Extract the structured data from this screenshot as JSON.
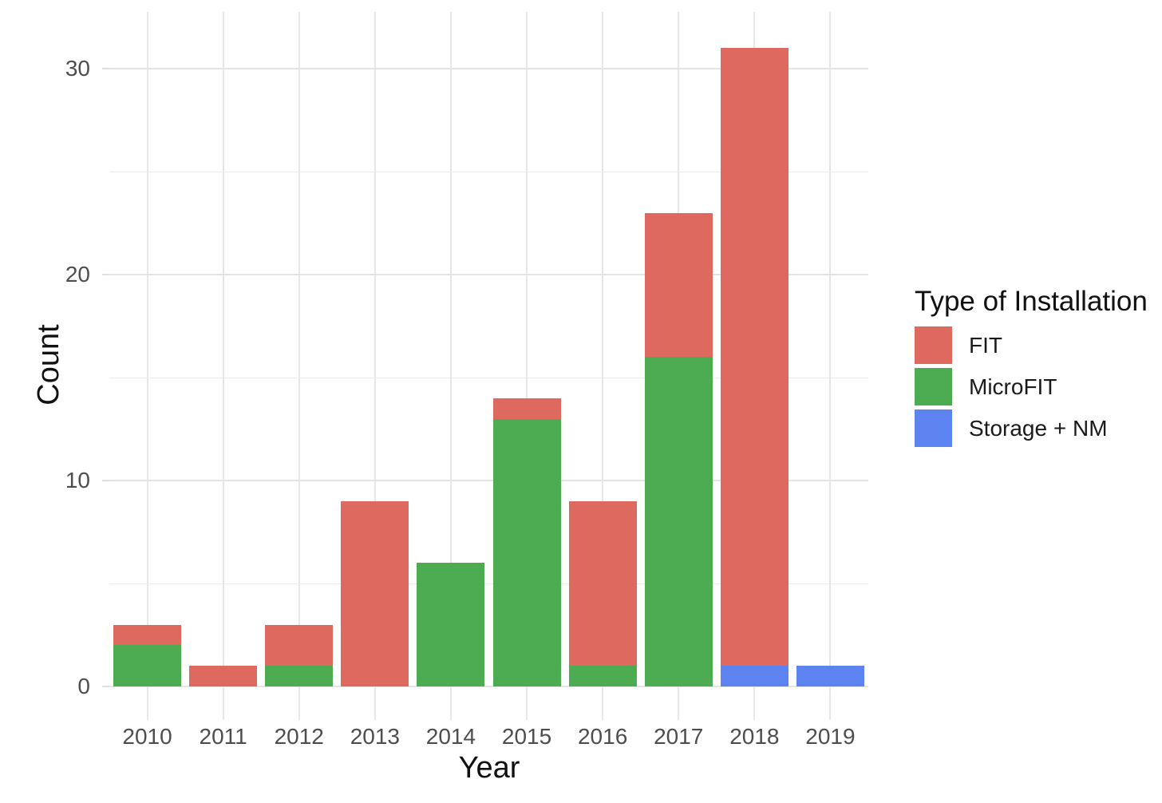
{
  "chart_data": {
    "type": "bar",
    "stacked": true,
    "xlabel": "Year",
    "ylabel": "Count",
    "legend_title": "Type of Installation",
    "legend_position": "right",
    "grid": true,
    "categories": [
      "2010",
      "2011",
      "2012",
      "2013",
      "2014",
      "2015",
      "2016",
      "2017",
      "2018",
      "2019"
    ],
    "series": [
      {
        "name": "FIT",
        "color": "#de695e",
        "values": [
          1,
          1,
          2,
          9,
          0,
          1,
          8,
          7,
          30,
          0
        ]
      },
      {
        "name": "MicroFIT",
        "color": "#4dac51",
        "values": [
          2,
          0,
          1,
          0,
          6,
          13,
          1,
          16,
          0,
          0
        ]
      },
      {
        "name": "Storage + NM",
        "color": "#5c83f0",
        "values": [
          0,
          0,
          0,
          0,
          0,
          0,
          0,
          0,
          1,
          1
        ]
      }
    ],
    "stack_order_bottom_to_top": [
      "Storage + NM",
      "MicroFIT",
      "FIT"
    ],
    "totals": [
      3,
      1,
      3,
      9,
      6,
      14,
      9,
      23,
      31,
      1
    ],
    "ylim": [
      -1.6,
      32.6
    ],
    "yticks_major": [
      0,
      10,
      20,
      30
    ],
    "yticks_minor": [
      5,
      15,
      25
    ],
    "colors": {
      "grid_major": "#e4e4e4",
      "grid_minor": "#ececec",
      "tick_text": "#4d4d4d",
      "title_text": "#111111",
      "background": "#ffffff"
    }
  }
}
